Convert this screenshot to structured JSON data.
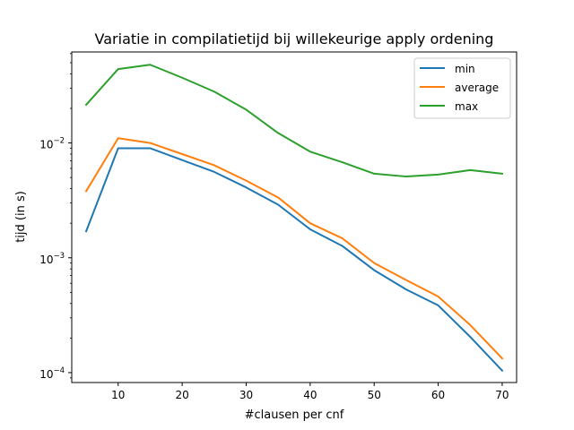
{
  "chart_data": {
    "type": "line",
    "title": "Variatie in compilatietijd bij willekeurige apply ordening",
    "xlabel": "#clausen per cnf",
    "ylabel": "tijd (in s)",
    "xlim": [
      2.75,
      72.25
    ],
    "ylim": [
      8.2e-05,
      0.062
    ],
    "yscale": "log",
    "xticks": [
      10,
      20,
      30,
      40,
      50,
      60,
      70
    ],
    "xtick_labels": [
      "10",
      "20",
      "30",
      "40",
      "50",
      "60",
      "70"
    ],
    "ytick_labels": [
      {
        "value": 0.0001,
        "base": "10",
        "exp": "−4"
      },
      {
        "value": 0.001,
        "base": "10",
        "exp": "−3"
      },
      {
        "value": 0.01,
        "base": "10",
        "exp": "−2"
      }
    ],
    "grid": false,
    "legend_position": "top-right",
    "x": [
      5,
      10,
      15,
      20,
      25,
      30,
      35,
      40,
      45,
      50,
      55,
      60,
      65,
      70
    ],
    "series": [
      {
        "name": "min",
        "color": "#1f77b4",
        "values": [
          0.0017,
          0.009,
          0.009,
          0.0071,
          0.0056,
          0.0041,
          0.0029,
          0.00177,
          0.00127,
          0.00078,
          0.00053,
          0.000385,
          0.000205,
          0.000104
        ]
      },
      {
        "name": "average",
        "color": "#ff7f0e",
        "values": [
          0.0038,
          0.011,
          0.01,
          0.008,
          0.0064,
          0.0047,
          0.00335,
          0.002,
          0.00148,
          0.0009,
          0.00064,
          0.00046,
          0.00026,
          0.000133
        ]
      },
      {
        "name": "max",
        "color": "#2ca02c",
        "values": [
          0.0215,
          0.044,
          0.048,
          0.037,
          0.028,
          0.0195,
          0.0122,
          0.0084,
          0.0068,
          0.0054,
          0.0051,
          0.0053,
          0.0058,
          0.0054
        ]
      }
    ]
  }
}
